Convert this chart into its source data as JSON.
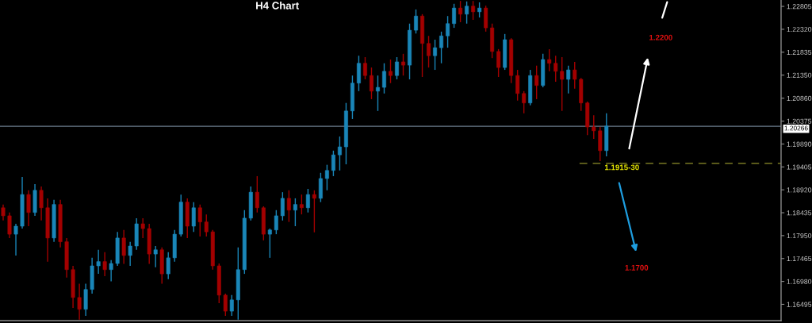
{
  "chart_data": {
    "type": "candlestick",
    "title": "H4 Chart",
    "categories": [
      null,
      null,
      null,
      null,
      null,
      null,
      null,
      null,
      null,
      null,
      null,
      null,
      null,
      null,
      null,
      null,
      null,
      null,
      null,
      null,
      null,
      null,
      null,
      null,
      null,
      null,
      null,
      null,
      null,
      null,
      null,
      null,
      null,
      null,
      null,
      null,
      null,
      null,
      null,
      null,
      null,
      null,
      null,
      null,
      null,
      null,
      null,
      null,
      null,
      null,
      null,
      null,
      null,
      null,
      null,
      null,
      null,
      null,
      null,
      null,
      null,
      null,
      null,
      null,
      null,
      null,
      null,
      null,
      null,
      null,
      null,
      null,
      null,
      null,
      null,
      null,
      null,
      null,
      null,
      null,
      null,
      null,
      null,
      null,
      null,
      null,
      null,
      null,
      null,
      null,
      null,
      null,
      null,
      null,
      null,
      null,
      null,
      null,
      null,
      null,
      null,
      null,
      null,
      null,
      null,
      null,
      null,
      null,
      null,
      null,
      null,
      null,
      null,
      null,
      null,
      null,
      null,
      null,
      null,
      null,
      null,
      null,
      null
    ],
    "ohlc": [
      [
        1.1854,
        1.1861,
        1.1827,
        1.1837
      ],
      [
        1.1837,
        1.1844,
        1.179,
        1.1798
      ],
      [
        1.1798,
        1.182,
        1.1753,
        1.1815
      ],
      [
        1.1815,
        1.1919,
        1.181,
        1.1882
      ],
      [
        1.1882,
        1.1891,
        1.1815,
        1.1844
      ],
      [
        1.1844,
        1.1904,
        1.1837,
        1.1891
      ],
      [
        1.1891,
        1.1899,
        1.1827,
        1.1854
      ],
      [
        1.1854,
        1.1874,
        1.174,
        1.179
      ],
      [
        1.179,
        1.1871,
        1.1782,
        1.1861
      ],
      [
        1.1861,
        1.1871,
        1.177,
        1.1782
      ],
      [
        1.1782,
        1.179,
        1.1706,
        1.1723
      ],
      [
        1.1723,
        1.1731,
        1.1642,
        1.1664
      ],
      [
        1.1664,
        1.1693,
        1.1617,
        1.1639
      ],
      [
        1.1639,
        1.1693,
        1.1625,
        1.1681
      ],
      [
        1.1681,
        1.1748,
        1.1672,
        1.1731
      ],
      [
        1.1731,
        1.1765,
        1.1714,
        1.174
      ],
      [
        1.174,
        1.176,
        1.1709,
        1.1723
      ],
      [
        1.1723,
        1.1743,
        1.1698,
        1.1736
      ],
      [
        1.1736,
        1.1803,
        1.1731,
        1.179
      ],
      [
        1.179,
        1.1807,
        1.1735,
        1.1753
      ],
      [
        1.1753,
        1.1782,
        1.1731,
        1.1773
      ],
      [
        1.1773,
        1.1832,
        1.1765,
        1.182
      ],
      [
        1.182,
        1.1832,
        1.179,
        1.181
      ],
      [
        1.181,
        1.182,
        1.1735,
        1.1756
      ],
      [
        1.1756,
        1.1773,
        1.1728,
        1.1765
      ],
      [
        1.1765,
        1.177,
        1.1693,
        1.1714
      ],
      [
        1.1714,
        1.176,
        1.1703,
        1.1748
      ],
      [
        1.1748,
        1.1807,
        1.174,
        1.1798
      ],
      [
        1.1798,
        1.1882,
        1.1793,
        1.1866
      ],
      [
        1.1866,
        1.1874,
        1.179,
        1.1815
      ],
      [
        1.1815,
        1.1866,
        1.1803,
        1.1854
      ],
      [
        1.1854,
        1.1861,
        1.1793,
        1.1824
      ],
      [
        1.1824,
        1.184,
        1.1793,
        1.1803
      ],
      [
        1.1803,
        1.1807,
        1.1723,
        1.1731
      ],
      [
        1.1731,
        1.1736,
        1.1652,
        1.1669
      ],
      [
        1.1669,
        1.1672,
        1.1625,
        1.1635
      ],
      [
        1.1635,
        1.1669,
        1.1625,
        1.1659
      ],
      [
        1.1659,
        1.177,
        1.1617,
        1.1723
      ],
      [
        1.1723,
        1.1849,
        1.1714,
        1.1832
      ],
      [
        1.1832,
        1.1899,
        1.1827,
        1.1887
      ],
      [
        1.1887,
        1.1921,
        1.1844,
        1.1854
      ],
      [
        1.1854,
        1.1857,
        1.1785,
        1.1798
      ],
      [
        1.1798,
        1.181,
        1.1748,
        1.1807
      ],
      [
        1.1807,
        1.1849,
        1.1798,
        1.1837
      ],
      [
        1.1837,
        1.1887,
        1.1827,
        1.1874
      ],
      [
        1.1874,
        1.1891,
        1.1824,
        1.1849
      ],
      [
        1.1849,
        1.1874,
        1.1815,
        1.1861
      ],
      [
        1.1861,
        1.1882,
        1.184,
        1.1854
      ],
      [
        1.1854,
        1.1894,
        1.1844,
        1.1882
      ],
      [
        1.1882,
        1.1891,
        1.1802,
        1.1874
      ],
      [
        1.1874,
        1.1928,
        1.1866,
        1.1916
      ],
      [
        1.1916,
        1.1945,
        1.1891,
        1.1933
      ],
      [
        1.1933,
        1.1975,
        1.1921,
        1.1966
      ],
      [
        1.1966,
        1.2005,
        1.1933,
        1.1983
      ],
      [
        1.1983,
        1.2076,
        1.1946,
        1.2059
      ],
      [
        1.2059,
        1.2134,
        1.2042,
        1.2118
      ],
      [
        1.2118,
        1.2176,
        1.2101,
        1.216
      ],
      [
        1.216,
        1.2173,
        1.2126,
        1.2134
      ],
      [
        1.2134,
        1.2151,
        1.2084,
        1.2101
      ],
      [
        1.2101,
        1.2134,
        1.2059,
        1.2109
      ],
      [
        1.2109,
        1.216,
        1.2096,
        1.2143
      ],
      [
        1.2143,
        1.2168,
        1.2118,
        1.2134
      ],
      [
        1.2134,
        1.2173,
        1.2126,
        1.2163
      ],
      [
        1.2163,
        1.218,
        1.2134,
        1.2156
      ],
      [
        1.2156,
        1.2244,
        1.2126,
        1.223
      ],
      [
        1.223,
        1.2274,
        1.2223,
        1.226
      ],
      [
        1.226,
        1.2264,
        1.2131,
        1.2202
      ],
      [
        1.2202,
        1.2218,
        1.2151,
        1.2176
      ],
      [
        1.2176,
        1.221,
        1.2146,
        1.2193
      ],
      [
        1.2193,
        1.2227,
        1.216,
        1.2218
      ],
      [
        1.2218,
        1.226,
        1.2193,
        1.2244
      ],
      [
        1.2244,
        1.2286,
        1.2235,
        1.2277
      ],
      [
        1.2277,
        1.2292,
        1.2247,
        1.2264
      ],
      [
        1.2264,
        1.2291,
        1.2244,
        1.2281
      ],
      [
        1.2281,
        1.2292,
        1.2252,
        1.2269
      ],
      [
        1.2269,
        1.2289,
        1.2257,
        1.2277
      ],
      [
        1.2277,
        1.2282,
        1.2227,
        1.2235
      ],
      [
        1.2235,
        1.2244,
        1.2171,
        1.2185
      ],
      [
        1.2185,
        1.219,
        1.2131,
        1.2151
      ],
      [
        1.2151,
        1.2222,
        1.2146,
        1.221
      ],
      [
        1.221,
        1.2213,
        1.2118,
        1.2134
      ],
      [
        1.2134,
        1.2146,
        1.2081,
        1.2096
      ],
      [
        1.2096,
        1.2101,
        1.2054,
        1.2076
      ],
      [
        1.2076,
        1.2146,
        1.2071,
        1.2134
      ],
      [
        1.2134,
        1.2155,
        1.2084,
        1.2113
      ],
      [
        1.2113,
        1.218,
        1.2109,
        1.2168
      ],
      [
        1.2168,
        1.219,
        1.2143,
        1.216
      ],
      [
        1.216,
        1.2176,
        1.2121,
        1.2143
      ],
      [
        1.2143,
        1.2173,
        1.2059,
        1.2126
      ],
      [
        1.2126,
        1.2155,
        1.2096,
        1.2146
      ],
      [
        1.2146,
        1.2163,
        1.2106,
        1.2126
      ],
      [
        1.2126,
        1.2129,
        1.2059,
        1.2076
      ],
      [
        1.2076,
        1.2079,
        1.2008,
        1.2025
      ],
      [
        1.2025,
        1.205,
        1.2,
        1.2017
      ],
      [
        1.2017,
        1.2025,
        1.1953,
        1.1975
      ],
      [
        1.1975,
        1.2054,
        1.1963,
        1.2027
      ],
      null,
      null,
      null,
      null,
      null,
      null,
      null,
      null,
      null,
      null,
      null,
      null,
      null,
      null,
      null,
      null,
      null,
      null,
      null,
      null,
      null,
      null,
      null,
      null,
      null,
      null,
      null
    ],
    "colors": [
      "#a30000",
      "#a30000",
      "#1a86b8",
      "#1a86b8",
      "#a30000",
      "#1a86b8",
      "#a30000",
      "#a30000",
      "#1a86b8",
      "#a30000",
      "#a30000",
      "#a30000",
      "#a30000",
      "#1a86b8",
      "#1a86b8",
      "#1a86b8",
      "#a30000",
      "#1a86b8",
      "#1a86b8",
      "#a30000",
      "#1a86b8",
      "#1a86b8",
      "#a30000",
      "#a30000",
      "#1a86b8",
      "#a30000",
      "#1a86b8",
      "#1a86b8",
      "#1a86b8",
      "#a30000",
      "#1a86b8",
      "#a30000",
      "#a30000",
      "#a30000",
      "#a30000",
      "#a30000",
      "#1a86b8",
      "#1a86b8",
      "#1a86b8",
      "#1a86b8",
      "#a30000",
      "#a30000",
      "#1a86b8",
      "#1a86b8",
      "#1a86b8",
      "#a30000",
      "#1a86b8",
      "#a30000",
      "#1a86b8",
      "#a30000",
      "#1a86b8",
      "#1a86b8",
      "#1a86b8",
      "#1a86b8",
      "#1a86b8",
      "#1a86b8",
      "#1a86b8",
      "#a30000",
      "#a30000",
      "#1a86b8",
      "#1a86b8",
      "#a30000",
      "#1a86b8",
      "#a30000",
      "#1a86b8",
      "#1a86b8",
      "#a30000",
      "#a30000",
      "#1a86b8",
      "#1a86b8",
      "#1a86b8",
      "#1a86b8",
      "#a30000",
      "#1a86b8",
      "#a30000",
      "#1a86b8",
      "#a30000",
      "#a30000",
      "#a30000",
      "#1a86b8",
      "#a30000",
      "#a30000",
      "#a30000",
      "#1a86b8",
      "#a30000",
      "#1a86b8",
      "#a30000",
      "#a30000",
      "#a30000",
      "#1a86b8",
      "#a30000",
      "#a30000",
      "#a30000",
      "#a30000",
      "#a30000",
      "#1a86b8",
      null,
      null,
      null,
      null,
      null,
      null,
      null,
      null,
      null,
      null,
      null,
      null,
      null,
      null,
      null,
      null,
      null,
      null,
      null,
      null,
      null,
      null,
      null,
      null,
      null,
      null,
      null
    ],
    "ylim": [
      1.1615,
      1.2294
    ],
    "yticks": [
      {
        "value": 1.22805,
        "label": "1.22805"
      },
      {
        "value": 1.2232,
        "label": "1.22320"
      },
      {
        "value": 1.21835,
        "label": "1.21835"
      },
      {
        "value": 1.2135,
        "label": "1.21350"
      },
      {
        "value": 1.2086,
        "label": "1.20860"
      },
      {
        "value": 1.20375,
        "label": "1.20375"
      },
      {
        "value": 1.1989,
        "label": "1.19890"
      },
      {
        "value": 1.19405,
        "label": "1.19405"
      },
      {
        "value": 1.1892,
        "label": "1.18920"
      },
      {
        "value": 1.18435,
        "label": "1.18435"
      },
      {
        "value": 1.1795,
        "label": "1.17950"
      },
      {
        "value": 1.17465,
        "label": "1.17465"
      },
      {
        "value": 1.1698,
        "label": "1.16980"
      },
      {
        "value": 1.16495,
        "label": "1.16495"
      }
    ],
    "tick_labels": "y",
    "ref_lines": [
      {
        "axis": "y",
        "value": 1.20266,
        "label": "1.20266",
        "color": "#6b7b8c",
        "line_style": "solid"
      },
      {
        "axis": "y",
        "value": 1.1948,
        "color": "#8f8f2a",
        "line_style": "dashed"
      }
    ],
    "annotations": [
      "1.2200",
      "1.1915-30",
      "1.1700"
    ]
  }
}
